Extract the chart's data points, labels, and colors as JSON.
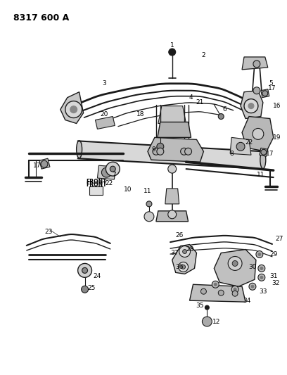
{
  "title": "8317 600 A",
  "bg": "#ffffff",
  "lc": "#1a1a1a",
  "tc": "#000000",
  "fig_w": 4.08,
  "fig_h": 5.33,
  "dpi": 100
}
